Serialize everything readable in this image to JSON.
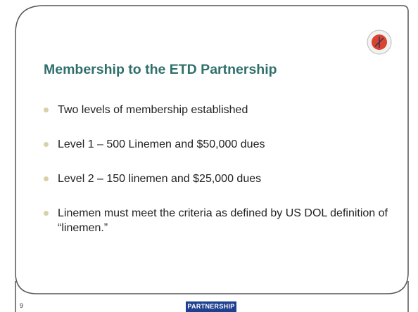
{
  "slide": {
    "title": "Membership to the ETD Partnership",
    "bullets": [
      "Two levels of membership established",
      "Level 1 – 500 Linemen and $50,000 dues",
      "Level 2 – 150 linemen and $25,000 dues",
      "Linemen must meet the criteria as defined by US DOL definition of “linemen.”"
    ],
    "page_number": "9",
    "footer_logo": "PARTNERSHIP"
  }
}
